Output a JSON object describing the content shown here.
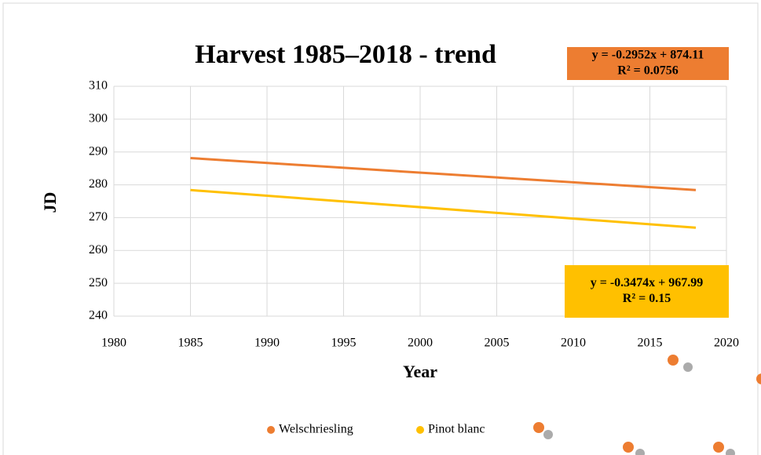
{
  "chart_data": {
    "type": "line",
    "title": "Harvest 1985–2018 - trend",
    "xlabel": "Year",
    "ylabel": "JD",
    "x": [
      1985,
      2018
    ],
    "series": [
      {
        "name": "Welschriesling",
        "color": "#ed7d31",
        "values": [
          288.14,
          278.4
        ]
      },
      {
        "name": "Pinot blanc",
        "color": "#ffc000",
        "values": [
          278.4,
          266.94
        ]
      }
    ],
    "annotations": [
      {
        "lines": [
          "y = -0.2952x + 874.11",
          "R² = 0.0756"
        ],
        "color": "#ed7d31"
      },
      {
        "lines": [
          "y = -0.3474x + 967.99",
          "R² = 0.15"
        ],
        "color": "#ffc000"
      }
    ],
    "xlim": [
      1980,
      2020
    ],
    "xticks": [
      1980,
      1985,
      1990,
      1995,
      2000,
      2005,
      2010,
      2015,
      2020
    ],
    "ylim": [
      240,
      310
    ],
    "yticks": [
      240,
      250,
      260,
      270,
      280,
      290,
      300,
      310
    ],
    "grid": true,
    "legend": "bottom"
  }
}
